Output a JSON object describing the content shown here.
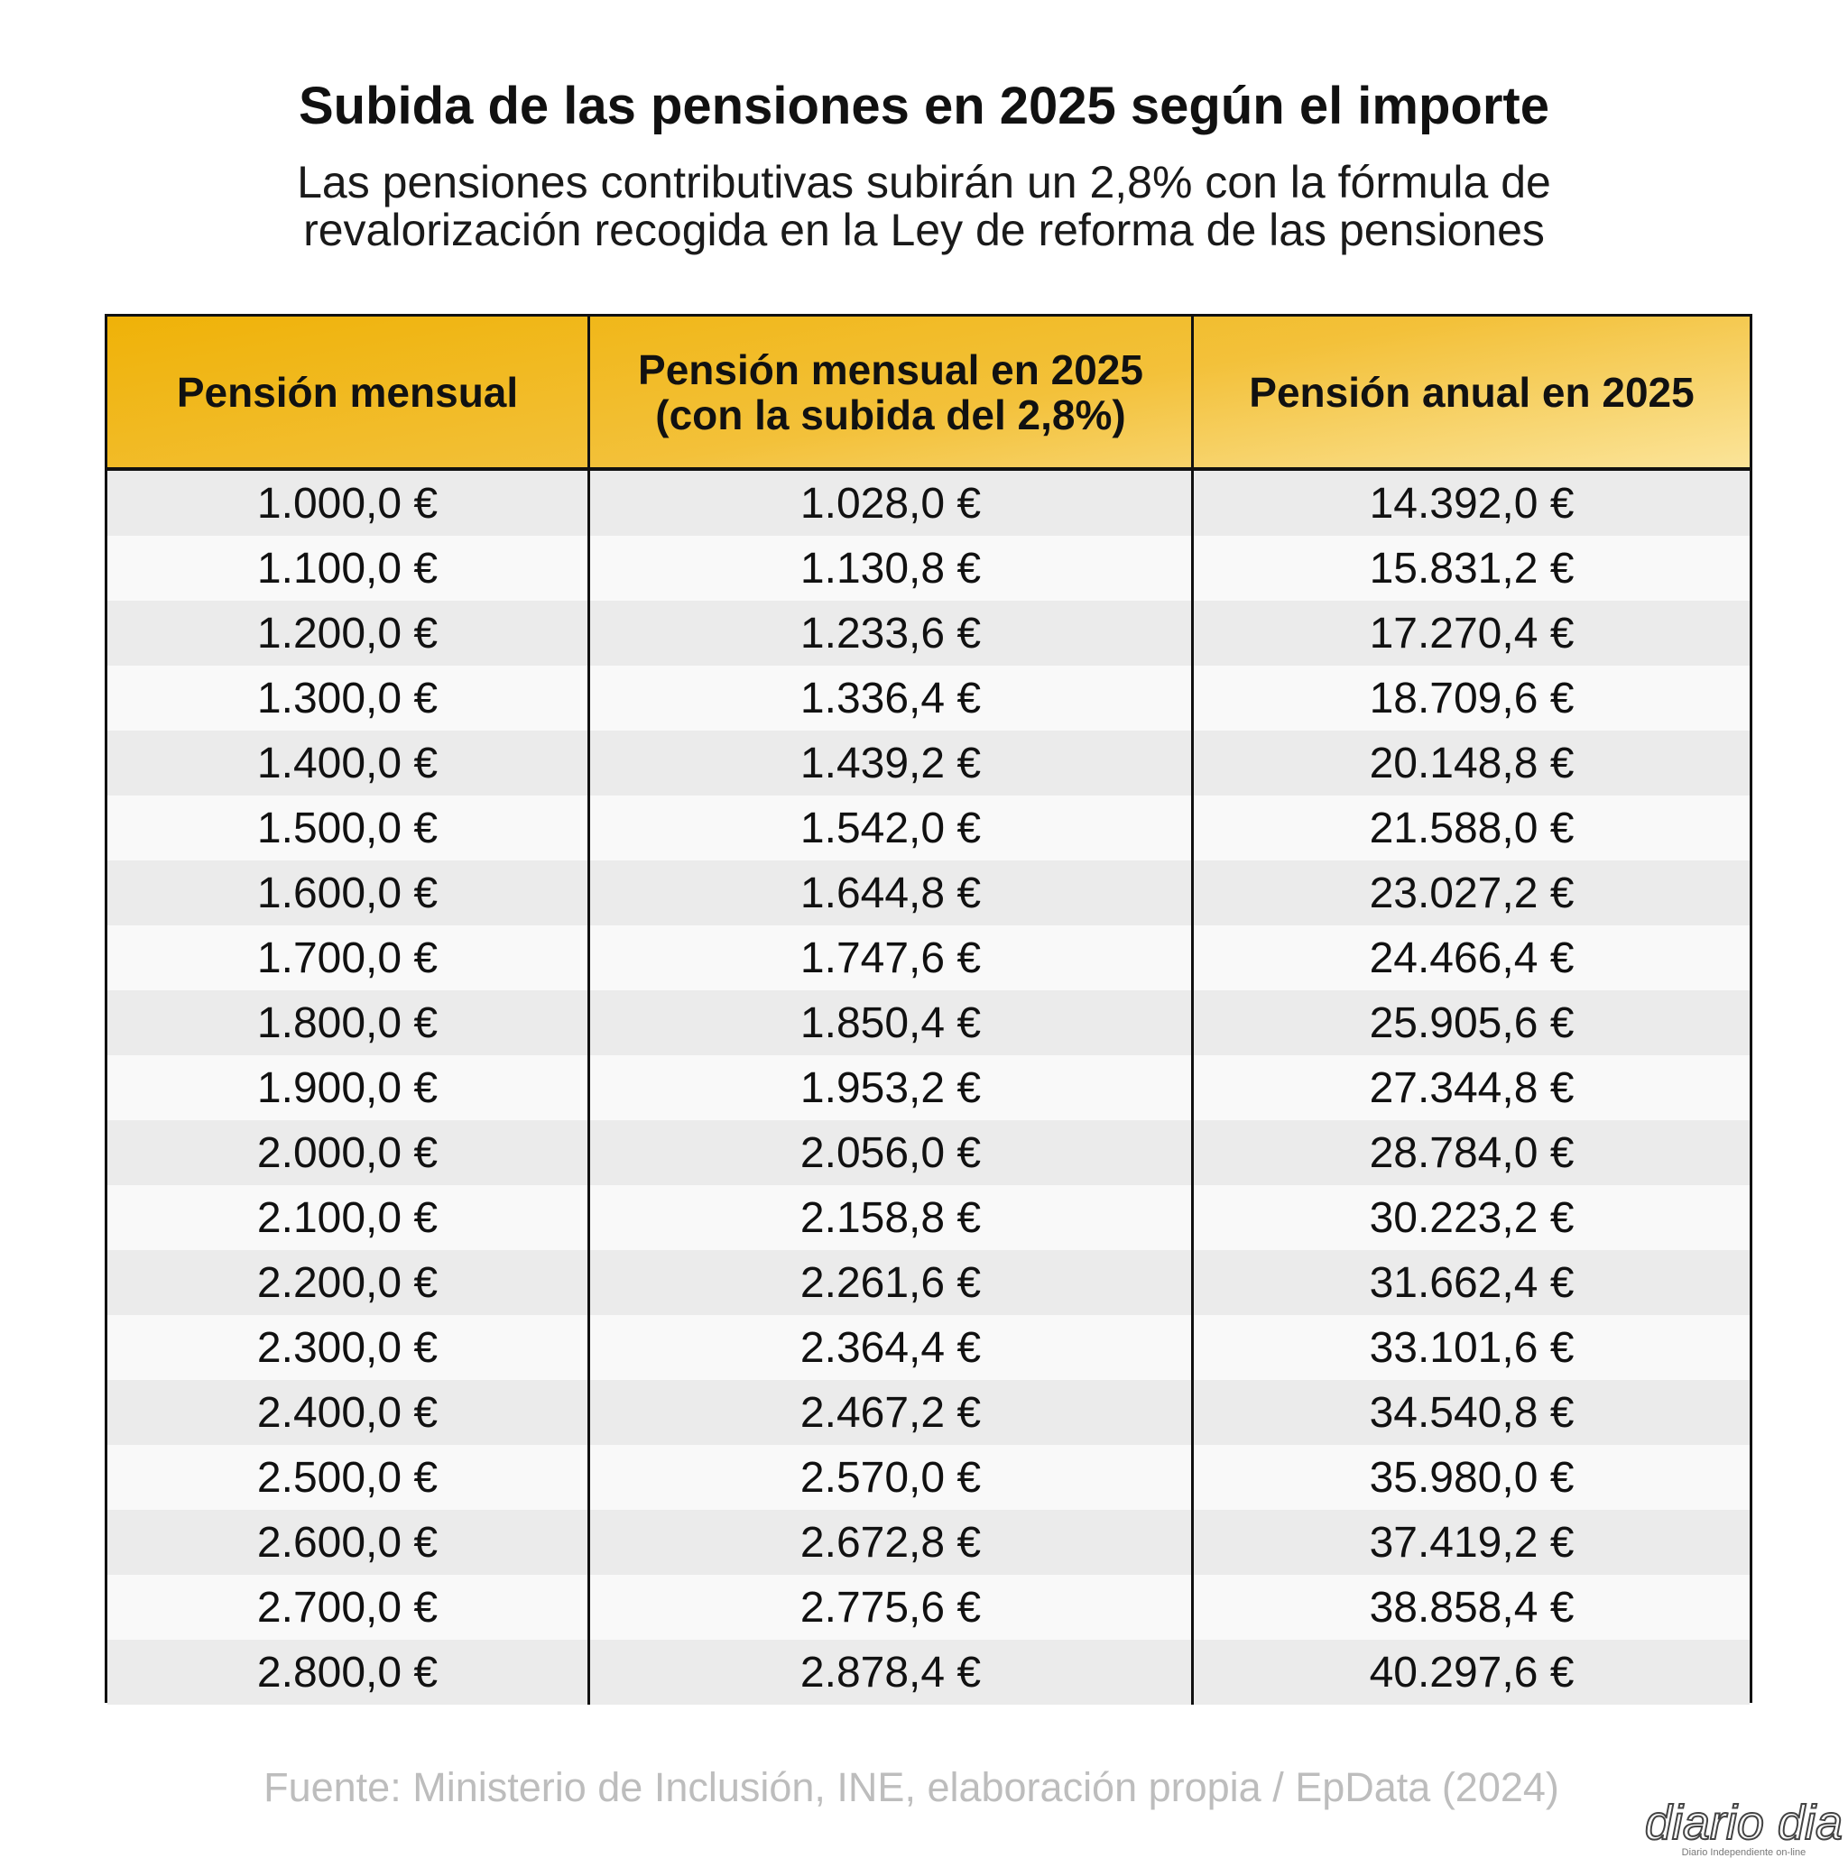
{
  "header": {
    "title": "Subida de las pensiones en 2025 según el importe",
    "subtitle": [
      "Las pensiones contributivas subirán un 2,8% con la fórmula de",
      "revalorización recogida en la Ley de reforma de las pensiones"
    ]
  },
  "table": {
    "columns": [
      [
        "Pensión mensual"
      ],
      [
        "Pensión mensual en 2025",
        "(con la subida del 2,8%)"
      ],
      [
        "Pensión anual en 2025"
      ]
    ],
    "rows": [
      [
        "1.000,0 €",
        "1.028,0 €",
        "14.392,0 €"
      ],
      [
        "1.100,0 €",
        "1.130,8 €",
        "15.831,2 €"
      ],
      [
        "1.200,0 €",
        "1.233,6 €",
        "17.270,4 €"
      ],
      [
        "1.300,0 €",
        "1.336,4 €",
        "18.709,6 €"
      ],
      [
        "1.400,0 €",
        "1.439,2 €",
        "20.148,8 €"
      ],
      [
        "1.500,0 €",
        "1.542,0 €",
        "21.588,0 €"
      ],
      [
        "1.600,0 €",
        "1.644,8 €",
        "23.027,2 €"
      ],
      [
        "1.700,0 €",
        "1.747,6 €",
        "24.466,4 €"
      ],
      [
        "1.800,0 €",
        "1.850,4 €",
        "25.905,6 €"
      ],
      [
        "1.900,0 €",
        "1.953,2 €",
        "27.344,8 €"
      ],
      [
        "2.000,0 €",
        "2.056,0 €",
        "28.784,0 €"
      ],
      [
        "2.100,0 €",
        "2.158,8 €",
        "30.223,2 €"
      ],
      [
        "2.200,0 €",
        "2.261,6 €",
        "31.662,4 €"
      ],
      [
        "2.300,0 €",
        "2.364,4 €",
        "33.101,6 €"
      ],
      [
        "2.400,0 €",
        "2.467,2 €",
        "34.540,8 €"
      ],
      [
        "2.500,0 €",
        "2.570,0 €",
        "35.980,0 €"
      ],
      [
        "2.600,0 €",
        "2.672,8 €",
        "37.419,2 €"
      ],
      [
        "2.700,0 €",
        "2.775,6 €",
        "38.858,4 €"
      ],
      [
        "2.800,0 €",
        "2.878,4 €",
        "40.297,6 €"
      ]
    ]
  },
  "footer": {
    "source": "Fuente: Ministerio de Inclusión, INE, elaboración propia / EpData (2024)"
  },
  "logo": {
    "name": "diario dia",
    "tagline": "Diario Independiente on-line"
  }
}
